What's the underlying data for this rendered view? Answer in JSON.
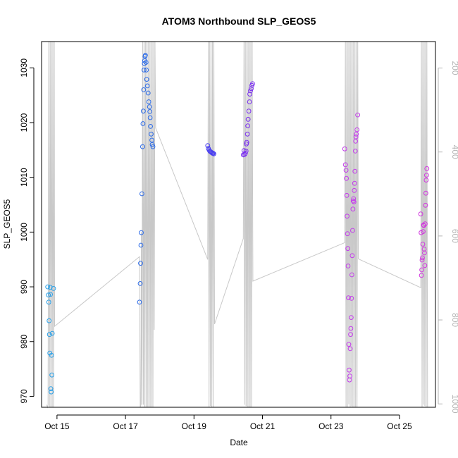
{
  "chart_data": {
    "type": "scatter",
    "title": "ATOM3 Northbound SLP_GEOS5",
    "xlabel": "Date",
    "ylabel": "SLP_GEOS5",
    "x_ticks": [
      "Oct 15",
      "Oct 17",
      "Oct 19",
      "Oct 21",
      "Oct 23",
      "Oct 25"
    ],
    "x_tick_values": [
      15,
      17,
      19,
      21,
      23,
      25
    ],
    "xlim": [
      14.55,
      26.05
    ],
    "ylim": [
      968,
      1034.8
    ],
    "y_ticks": [
      970,
      980,
      990,
      1000,
      1010,
      1020,
      1030
    ],
    "right_axis": {
      "ticks": [
        200,
        400,
        600,
        800,
        1000
      ],
      "ylim": [
        1008,
        137
      ],
      "color": "#b5b5b5"
    },
    "grid": false,
    "points": [
      {
        "x": 14.73,
        "y": 990,
        "c": "#29a0e8"
      },
      {
        "x": 14.75,
        "y": 988.5,
        "c": "#29a0e8"
      },
      {
        "x": 14.76,
        "y": 987.2,
        "c": "#29a0e8"
      },
      {
        "x": 14.77,
        "y": 983.8,
        "c": "#29a0e8"
      },
      {
        "x": 14.78,
        "y": 981.3,
        "c": "#29a0e8"
      },
      {
        "x": 14.79,
        "y": 977.9,
        "c": "#29a0e8"
      },
      {
        "x": 14.8,
        "y": 989.9,
        "c": "#29a0e8"
      },
      {
        "x": 14.81,
        "y": 988.6,
        "c": "#29a0e8"
      },
      {
        "x": 14.82,
        "y": 971.4,
        "c": "#29a0e8"
      },
      {
        "x": 14.83,
        "y": 970.8,
        "c": "#29a0e8"
      },
      {
        "x": 14.84,
        "y": 977.5,
        "c": "#29a0e8"
      },
      {
        "x": 14.85,
        "y": 973.9,
        "c": "#29a0e8"
      },
      {
        "x": 14.86,
        "y": 981.5,
        "c": "#29a0e8"
      },
      {
        "x": 14.9,
        "y": 989.7,
        "c": "#29a0e8"
      },
      {
        "x": 17.41,
        "y": 987.2,
        "c": "#2a6ae8"
      },
      {
        "x": 17.43,
        "y": 990.6,
        "c": "#2a6ae8"
      },
      {
        "x": 17.44,
        "y": 994.3,
        "c": "#2a6ae8"
      },
      {
        "x": 17.45,
        "y": 997.6,
        "c": "#2a6ae8"
      },
      {
        "x": 17.46,
        "y": 999.9,
        "c": "#2a6ae8"
      },
      {
        "x": 17.48,
        "y": 1007,
        "c": "#2a6ae8"
      },
      {
        "x": 17.5,
        "y": 1015.6,
        "c": "#2a6ae8"
      },
      {
        "x": 17.51,
        "y": 1019.8,
        "c": "#2a6ae8"
      },
      {
        "x": 17.52,
        "y": 1022.1,
        "c": "#2a6ae8"
      },
      {
        "x": 17.53,
        "y": 1026,
        "c": "#2a6ae8"
      },
      {
        "x": 17.54,
        "y": 1029.6,
        "c": "#2a6ae8"
      },
      {
        "x": 17.55,
        "y": 1030.8,
        "c": "#2a6ae8"
      },
      {
        "x": 17.56,
        "y": 1031.3,
        "c": "#2a6ae8"
      },
      {
        "x": 17.57,
        "y": 1032.1,
        "c": "#2a6ae8"
      },
      {
        "x": 17.58,
        "y": 1032.3,
        "c": "#2a6ae8"
      },
      {
        "x": 17.6,
        "y": 1031,
        "c": "#2a6ae8"
      },
      {
        "x": 17.61,
        "y": 1029.6,
        "c": "#2a6ae8"
      },
      {
        "x": 17.62,
        "y": 1027.9,
        "c": "#2a6ae8"
      },
      {
        "x": 17.64,
        "y": 1026.7,
        "c": "#2a6ae8"
      },
      {
        "x": 17.66,
        "y": 1025.4,
        "c": "#2a6ae8"
      },
      {
        "x": 17.68,
        "y": 1023.8,
        "c": "#2a6ae8"
      },
      {
        "x": 17.7,
        "y": 1022.9,
        "c": "#2a6ae8"
      },
      {
        "x": 17.71,
        "y": 1022,
        "c": "#2a6ae8"
      },
      {
        "x": 17.72,
        "y": 1020.9,
        "c": "#2a6ae8"
      },
      {
        "x": 17.73,
        "y": 1019.3,
        "c": "#2a6ae8"
      },
      {
        "x": 17.75,
        "y": 1017.9,
        "c": "#2a6ae8"
      },
      {
        "x": 17.77,
        "y": 1016.8,
        "c": "#2a6ae8"
      },
      {
        "x": 17.78,
        "y": 1016,
        "c": "#2a6ae8"
      },
      {
        "x": 17.8,
        "y": 1015.6,
        "c": "#2a6ae8"
      },
      {
        "x": 19.4,
        "y": 1015.8,
        "c": "#4a3ff0"
      },
      {
        "x": 19.42,
        "y": 1015.3,
        "c": "#4a3ff0"
      },
      {
        "x": 19.44,
        "y": 1015,
        "c": "#4a3ff0"
      },
      {
        "x": 19.46,
        "y": 1014.8,
        "c": "#4a3ff0"
      },
      {
        "x": 19.48,
        "y": 1014.7,
        "c": "#4a3ff0"
      },
      {
        "x": 19.5,
        "y": 1014.6,
        "c": "#4a3ff0"
      },
      {
        "x": 19.52,
        "y": 1014.5,
        "c": "#4a3ff0"
      },
      {
        "x": 19.54,
        "y": 1014.4,
        "c": "#4a3ff0"
      },
      {
        "x": 19.56,
        "y": 1014.4,
        "c": "#4a3ff0"
      },
      {
        "x": 19.58,
        "y": 1014.3,
        "c": "#4a3ff0"
      },
      {
        "x": 20.44,
        "y": 1014.1,
        "c": "#7a2ef0"
      },
      {
        "x": 20.46,
        "y": 1014.9,
        "c": "#7a2ef0"
      },
      {
        "x": 20.48,
        "y": 1014.2,
        "c": "#7a2ef0"
      },
      {
        "x": 20.5,
        "y": 1014.4,
        "c": "#7a2ef0"
      },
      {
        "x": 20.52,
        "y": 1014.8,
        "c": "#7a2ef0"
      },
      {
        "x": 20.53,
        "y": 1016.1,
        "c": "#7a2ef0"
      },
      {
        "x": 20.54,
        "y": 1016.4,
        "c": "#7a2ef0"
      },
      {
        "x": 20.56,
        "y": 1017.9,
        "c": "#7a2ef0"
      },
      {
        "x": 20.57,
        "y": 1019.4,
        "c": "#7a2ef0"
      },
      {
        "x": 20.58,
        "y": 1020.6,
        "c": "#7a2ef0"
      },
      {
        "x": 20.6,
        "y": 1022.1,
        "c": "#7a2ef0"
      },
      {
        "x": 20.62,
        "y": 1023.8,
        "c": "#7a2ef0"
      },
      {
        "x": 20.63,
        "y": 1025.2,
        "c": "#7a2ef0"
      },
      {
        "x": 20.65,
        "y": 1025.8,
        "c": "#7a2ef0"
      },
      {
        "x": 20.67,
        "y": 1026.2,
        "c": "#7a2ef0"
      },
      {
        "x": 20.69,
        "y": 1026.8,
        "c": "#7a2ef0"
      },
      {
        "x": 20.71,
        "y": 1027.1,
        "c": "#7a2ef0"
      },
      {
        "x": 23.4,
        "y": 1015.2,
        "c": "#c43cec"
      },
      {
        "x": 23.42,
        "y": 1012.3,
        "c": "#c43cec"
      },
      {
        "x": 23.44,
        "y": 1011.3,
        "c": "#c43cec"
      },
      {
        "x": 23.45,
        "y": 1009.8,
        "c": "#c43cec"
      },
      {
        "x": 23.46,
        "y": 1006.7,
        "c": "#c43cec"
      },
      {
        "x": 23.47,
        "y": 1002.9,
        "c": "#c43cec"
      },
      {
        "x": 23.48,
        "y": 999.7,
        "c": "#c43cec"
      },
      {
        "x": 23.49,
        "y": 997,
        "c": "#c43cec"
      },
      {
        "x": 23.5,
        "y": 993.8,
        "c": "#c43cec"
      },
      {
        "x": 23.51,
        "y": 988,
        "c": "#c43cec"
      },
      {
        "x": 23.52,
        "y": 979.5,
        "c": "#c43cec"
      },
      {
        "x": 23.53,
        "y": 974.8,
        "c": "#c43cec"
      },
      {
        "x": 23.54,
        "y": 973,
        "c": "#c43cec"
      },
      {
        "x": 23.55,
        "y": 973.7,
        "c": "#c43cec"
      },
      {
        "x": 23.56,
        "y": 978.7,
        "c": "#c43cec"
      },
      {
        "x": 23.57,
        "y": 981.3,
        "c": "#c43cec"
      },
      {
        "x": 23.58,
        "y": 982.4,
        "c": "#c43cec"
      },
      {
        "x": 23.59,
        "y": 984.4,
        "c": "#c43cec"
      },
      {
        "x": 23.6,
        "y": 987.9,
        "c": "#c43cec"
      },
      {
        "x": 23.61,
        "y": 992.2,
        "c": "#c43cec"
      },
      {
        "x": 23.62,
        "y": 995.7,
        "c": "#c43cec"
      },
      {
        "x": 23.63,
        "y": 1000.3,
        "c": "#c43cec"
      },
      {
        "x": 23.64,
        "y": 1004.2,
        "c": "#c43cec"
      },
      {
        "x": 23.65,
        "y": 1005.7,
        "c": "#c43cec"
      },
      {
        "x": 23.66,
        "y": 1006.1,
        "c": "#c43cec"
      },
      {
        "x": 23.67,
        "y": 1005.5,
        "c": "#c43cec"
      },
      {
        "x": 23.68,
        "y": 1007.6,
        "c": "#c43cec"
      },
      {
        "x": 23.69,
        "y": 1008.9,
        "c": "#c43cec"
      },
      {
        "x": 23.7,
        "y": 1011.1,
        "c": "#c43cec"
      },
      {
        "x": 23.71,
        "y": 1014.8,
        "c": "#c43cec"
      },
      {
        "x": 23.72,
        "y": 1016.6,
        "c": "#c43cec"
      },
      {
        "x": 23.73,
        "y": 1017.4,
        "c": "#c43cec"
      },
      {
        "x": 23.74,
        "y": 1017.9,
        "c": "#c43cec"
      },
      {
        "x": 23.76,
        "y": 1018.7,
        "c": "#c43cec"
      },
      {
        "x": 23.78,
        "y": 1021.4,
        "c": "#c43cec"
      },
      {
        "x": 25.62,
        "y": 1003.3,
        "c": "#d236df"
      },
      {
        "x": 25.63,
        "y": 999.9,
        "c": "#d236df"
      },
      {
        "x": 25.64,
        "y": 992.1,
        "c": "#d236df"
      },
      {
        "x": 25.65,
        "y": 993.1,
        "c": "#d236df"
      },
      {
        "x": 25.66,
        "y": 994.9,
        "c": "#d236df"
      },
      {
        "x": 25.67,
        "y": 995.3,
        "c": "#d236df"
      },
      {
        "x": 25.68,
        "y": 997.8,
        "c": "#d236df"
      },
      {
        "x": 25.69,
        "y": 1000.1,
        "c": "#d236df"
      },
      {
        "x": 25.7,
        "y": 1001.3,
        "c": "#d236df"
      },
      {
        "x": 25.71,
        "y": 1001.2,
        "c": "#d236df"
      },
      {
        "x": 25.72,
        "y": 996.9,
        "c": "#d236df"
      },
      {
        "x": 25.73,
        "y": 996.2,
        "c": "#d236df"
      },
      {
        "x": 25.74,
        "y": 993.9,
        "c": "#d236df"
      },
      {
        "x": 25.75,
        "y": 1001.5,
        "c": "#d236df"
      },
      {
        "x": 25.76,
        "y": 1004.9,
        "c": "#d236df"
      },
      {
        "x": 25.77,
        "y": 1007.1,
        "c": "#d236df"
      },
      {
        "x": 25.78,
        "y": 1009.5,
        "c": "#d236df"
      },
      {
        "x": 25.79,
        "y": 1010.4,
        "c": "#d236df"
      },
      {
        "x": 25.8,
        "y": 1011.6,
        "c": "#d236df"
      }
    ],
    "gray_line": {
      "color": "#c8c8c8",
      "points": [
        [
          14.7,
          1001.9
        ],
        [
          14.72,
          1009.9
        ],
        [
          14.74,
          1001.9
        ],
        [
          14.76,
          137
        ],
        [
          14.78,
          1006.9
        ],
        [
          14.8,
          137
        ],
        [
          14.82,
          1013.1
        ],
        [
          14.84,
          137
        ],
        [
          14.86,
          1016.5
        ],
        [
          14.88,
          137
        ],
        [
          14.9,
          1017.9
        ],
        [
          14.92,
          137
        ],
        [
          14.93,
          815.1
        ],
        [
          17.41,
          649.3
        ],
        [
          17.43,
          1015.8
        ],
        [
          17.45,
          1001.9
        ],
        [
          17.46,
          591.1
        ],
        [
          17.48,
          1001.9
        ],
        [
          17.5,
          137
        ],
        [
          17.52,
          1001.9
        ],
        [
          17.54,
          137
        ],
        [
          17.56,
          1008.9
        ],
        [
          17.58,
          137
        ],
        [
          17.6,
          1013.9
        ],
        [
          17.62,
          137
        ],
        [
          17.64,
          1016.4
        ],
        [
          17.66,
          137
        ],
        [
          17.68,
          1017.6
        ],
        [
          17.7,
          137
        ],
        [
          17.72,
          1018.3
        ],
        [
          17.74,
          137
        ],
        [
          17.76,
          1018.8
        ],
        [
          17.78,
          137
        ],
        [
          17.8,
          1019.2
        ],
        [
          17.82,
          137
        ],
        [
          17.84,
          823.4
        ],
        [
          17.86,
          137
        ],
        [
          17.88,
          342.6
        ],
        [
          19.4,
          656
        ],
        [
          19.42,
          137
        ],
        [
          19.44,
          1009.9
        ],
        [
          19.46,
          137
        ],
        [
          19.48,
          1004.9
        ],
        [
          19.5,
          137
        ],
        [
          19.52,
          1012.5
        ],
        [
          19.54,
          137
        ],
        [
          19.56,
          1015.6
        ],
        [
          19.58,
          137
        ],
        [
          19.6,
          809.8
        ],
        [
          20.44,
          606.1
        ],
        [
          20.46,
          137
        ],
        [
          20.48,
          1001.9
        ],
        [
          20.5,
          137
        ],
        [
          20.52,
          1005.1
        ],
        [
          20.54,
          137
        ],
        [
          20.56,
          1011.2
        ],
        [
          20.58,
          137
        ],
        [
          20.6,
          1014.7
        ],
        [
          20.62,
          137
        ],
        [
          20.64,
          1016.7
        ],
        [
          20.66,
          137
        ],
        [
          20.68,
          1017.9
        ],
        [
          20.7,
          137
        ],
        [
          20.72,
          707.6
        ],
        [
          23.4,
          615.9
        ],
        [
          23.42,
          137
        ],
        [
          23.44,
          1013.4
        ],
        [
          23.46,
          137
        ],
        [
          23.48,
          1008.4
        ],
        [
          23.5,
          137
        ],
        [
          23.52,
          1001.1
        ],
        [
          23.54,
          137
        ],
        [
          23.56,
          1010.5
        ],
        [
          23.58,
          137
        ],
        [
          23.6,
          1006.1
        ],
        [
          23.62,
          137
        ],
        [
          23.64,
          1014.8
        ],
        [
          23.66,
          137
        ],
        [
          23.68,
          1017.4
        ],
        [
          23.7,
          137
        ],
        [
          23.72,
          1015.3
        ],
        [
          23.74,
          137
        ],
        [
          23.76,
          1018.7
        ],
        [
          23.78,
          137
        ],
        [
          23.8,
          654.6
        ],
        [
          25.62,
          723.1
        ],
        [
          25.64,
          137
        ],
        [
          25.66,
          1016.1
        ],
        [
          25.68,
          137
        ],
        [
          25.7,
          1001.9
        ],
        [
          25.72,
          137
        ],
        [
          25.74,
          1004.6
        ],
        [
          25.76,
          137
        ],
        [
          25.78,
          1010.7
        ],
        [
          25.8,
          137
        ],
        [
          25.82,
          1009.2
        ]
      ]
    }
  }
}
